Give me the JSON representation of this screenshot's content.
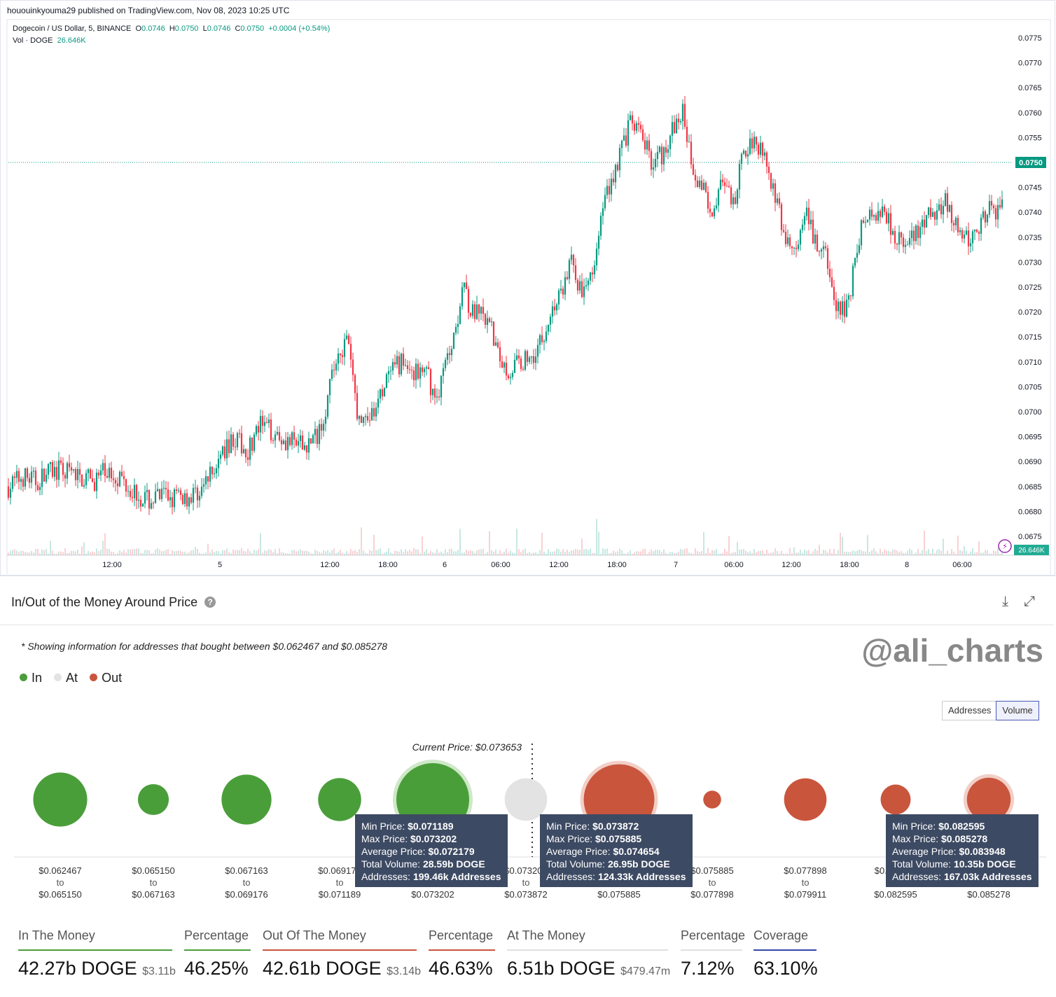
{
  "header": {
    "published": "hououinkyouma29 published on TradingView.com, Nov 08, 2023 10:25 UTC",
    "symbol": "Dogecoin / US Dollar, 5, BINANCE",
    "o_label": "O",
    "o": "0.0746",
    "h_label": "H",
    "h": "0.0750",
    "l_label": "L",
    "l": "0.0746",
    "c_label": "C",
    "c": "0.0750",
    "change": "+0.0004 (+0.54%)",
    "vol_label": "Vol · DOGE",
    "vol": "26.646K",
    "last_price_tag": "0.0750",
    "vol_tag": "26.646K"
  },
  "chart_data": [
    {
      "type": "candlestick",
      "title": "Dogecoin / US Dollar, 5, BINANCE",
      "ylim": [
        0.0672,
        0.0778
      ],
      "y_ticks": [
        "0.0775",
        "0.0770",
        "0.0765",
        "0.0760",
        "0.0755",
        "0.0750",
        "0.0745",
        "0.0740",
        "0.0735",
        "0.0730",
        "0.0725",
        "0.0720",
        "0.0715",
        "0.0710",
        "0.0705",
        "0.0700",
        "0.0695",
        "0.0690",
        "0.0685",
        "0.0680",
        "0.0675"
      ],
      "x_ticks": [
        "12:00",
        "5",
        "12:00",
        "18:00",
        "6",
        "06:00",
        "12:00",
        "18:00",
        "7",
        "06:00",
        "12:00",
        "18:00",
        "8",
        "06:00"
      ],
      "price_path": [
        [
          0,
          0.0685
        ],
        [
          20,
          0.0687
        ],
        [
          40,
          0.0686
        ],
        [
          60,
          0.0688
        ],
        [
          80,
          0.0688
        ],
        [
          100,
          0.0687
        ],
        [
          120,
          0.0686
        ],
        [
          140,
          0.0688
        ],
        [
          160,
          0.0687
        ],
        [
          180,
          0.0684
        ],
        [
          200,
          0.0682
        ],
        [
          220,
          0.0683
        ],
        [
          240,
          0.0683
        ],
        [
          260,
          0.0683
        ],
        [
          280,
          0.0685
        ],
        [
          300,
          0.069
        ],
        [
          320,
          0.0695
        ],
        [
          340,
          0.0692
        ],
        [
          360,
          0.0697
        ],
        [
          380,
          0.0696
        ],
        [
          400,
          0.0694
        ],
        [
          420,
          0.0693
        ],
        [
          440,
          0.0695
        ],
        [
          455,
          0.0702
        ],
        [
          470,
          0.0712
        ],
        [
          485,
          0.0714
        ],
        [
          500,
          0.0698
        ],
        [
          520,
          0.0699
        ],
        [
          540,
          0.0706
        ],
        [
          560,
          0.071
        ],
        [
          580,
          0.0708
        ],
        [
          600,
          0.0707
        ],
        [
          610,
          0.0702
        ],
        [
          625,
          0.071
        ],
        [
          640,
          0.0718
        ],
        [
          650,
          0.0727
        ],
        [
          660,
          0.072
        ],
        [
          675,
          0.0719
        ],
        [
          690,
          0.0716
        ],
        [
          700,
          0.0711
        ],
        [
          715,
          0.0708
        ],
        [
          730,
          0.071
        ],
        [
          745,
          0.0711
        ],
        [
          760,
          0.0714
        ],
        [
          775,
          0.072
        ],
        [
          790,
          0.0724
        ],
        [
          805,
          0.0731
        ],
        [
          820,
          0.0722
        ],
        [
          835,
          0.073
        ],
        [
          850,
          0.0742
        ],
        [
          865,
          0.0748
        ],
        [
          880,
          0.0755
        ],
        [
          890,
          0.0758
        ],
        [
          905,
          0.0755
        ],
        [
          920,
          0.075
        ],
        [
          935,
          0.0752
        ],
        [
          950,
          0.0757
        ],
        [
          965,
          0.076
        ],
        [
          975,
          0.075
        ],
        [
          990,
          0.0745
        ],
        [
          1005,
          0.0741
        ],
        [
          1020,
          0.0746
        ],
        [
          1035,
          0.0741
        ],
        [
          1050,
          0.0752
        ],
        [
          1065,
          0.0755
        ],
        [
          1080,
          0.0752
        ],
        [
          1095,
          0.0743
        ],
        [
          1110,
          0.0734
        ],
        [
          1125,
          0.0732
        ],
        [
          1140,
          0.0739
        ],
        [
          1155,
          0.0733
        ],
        [
          1170,
          0.073
        ],
        [
          1180,
          0.0721
        ],
        [
          1190,
          0.072
        ],
        [
          1200,
          0.0723
        ],
        [
          1210,
          0.0731
        ],
        [
          1220,
          0.0738
        ],
        [
          1235,
          0.074
        ],
        [
          1250,
          0.0741
        ],
        [
          1265,
          0.0736
        ],
        [
          1280,
          0.0733
        ],
        [
          1295,
          0.0735
        ],
        [
          1310,
          0.0738
        ],
        [
          1325,
          0.0741
        ],
        [
          1340,
          0.0742
        ],
        [
          1355,
          0.0736
        ],
        [
          1370,
          0.0734
        ],
        [
          1385,
          0.0737
        ],
        [
          1400,
          0.074
        ],
        [
          1415,
          0.0741
        ],
        [
          1425,
          0.0749
        ],
        [
          1433,
          0.0748
        ]
      ]
    },
    {
      "type": "bubble",
      "title": "In/Out of the Money Around Price",
      "series_key": [
        "In",
        "At",
        "Out"
      ],
      "bins": [
        {
          "range": [
            "$0.062467",
            "$0.065150"
          ],
          "status": "In",
          "rel_volume": 0.55
        },
        {
          "range": [
            "$0.065150",
            "$0.067163"
          ],
          "status": "In",
          "rel_volume": 0.18
        },
        {
          "range": [
            "$0.067163",
            "$0.069176"
          ],
          "status": "In",
          "rel_volume": 0.47
        },
        {
          "range": [
            "$0.069176",
            "$0.071189"
          ],
          "status": "In",
          "rel_volume": 0.35
        },
        {
          "range": [
            "$0.071189",
            "$0.073202"
          ],
          "status": "In",
          "rel_volume": 1.0
        },
        {
          "range": [
            "$0.073202",
            "$0.073872"
          ],
          "status": "At",
          "rel_volume": 0.34
        },
        {
          "range": [
            "$0.073872",
            "$0.075885"
          ],
          "status": "Out",
          "rel_volume": 0.94
        },
        {
          "range": [
            "$0.075885",
            "$0.077898"
          ],
          "status": "Out",
          "rel_volume": 0.06
        },
        {
          "range": [
            "$0.077898",
            "$0.079911"
          ],
          "status": "Out",
          "rel_volume": 0.34
        },
        {
          "range": [
            "$0.079911",
            "$0.082595"
          ],
          "status": "Out",
          "rel_volume": 0.17
        },
        {
          "range": [
            "$0.082595",
            "$0.085278"
          ],
          "status": "Out",
          "rel_volume": 0.36
        }
      ],
      "current_price": "Current Price: $0.073653"
    }
  ],
  "iom": {
    "title": "In/Out of the Money Around Price",
    "note": "* Showing information for addresses that bought between $0.062467 and $0.085278",
    "watermark": "@ali_charts",
    "legend": [
      "In",
      "At",
      "Out"
    ],
    "toggle": [
      "Addresses",
      "Volume"
    ],
    "to": "to",
    "colors": {
      "in": "#4a9e3a",
      "at": "#e3e3e3",
      "out": "#c9553d"
    }
  },
  "tooltips": [
    {
      "min_label": "Min Price:",
      "min": "$0.071189",
      "max_label": "Max Price:",
      "max": "$0.073202",
      "avg_label": "Average Price:",
      "avg": "$0.072179",
      "vol_label": "Total Volume:",
      "vol": "28.59b DOGE",
      "addr_label": "Addresses:",
      "addr": "199.46k Addresses"
    },
    {
      "min_label": "Min Price:",
      "min": "$0.073872",
      "max_label": "Max Price:",
      "max": "$0.075885",
      "avg_label": "Average Price:",
      "avg": "$0.074654",
      "vol_label": "Total Volume:",
      "vol": "26.95b DOGE",
      "addr_label": "Addresses:",
      "addr": "124.33k Addresses"
    },
    {
      "min_label": "Min Price:",
      "min": "$0.082595",
      "max_label": "Max Price:",
      "max": "$0.085278",
      "avg_label": "Average Price:",
      "avg": "$0.083948",
      "vol_label": "Total Volume:",
      "vol": "10.35b DOGE",
      "addr_label": "Addresses:",
      "addr": "167.03k Addresses"
    }
  ],
  "stats": {
    "in_label": "In The Money",
    "in_value": "42.27b DOGE",
    "in_usd": "$3.11b",
    "in_pct_label": "Percentage",
    "in_pct": "46.25%",
    "out_label": "Out Of The Money",
    "out_value": "42.61b DOGE",
    "out_usd": "$3.14b",
    "out_pct_label": "Percentage",
    "out_pct": "46.63%",
    "at_label": "At The Money",
    "at_value": "6.51b DOGE",
    "at_usd": "$479.47m",
    "at_pct_label": "Percentage",
    "at_pct": "7.12%",
    "cov_label": "Coverage",
    "cov": "63.10%"
  }
}
